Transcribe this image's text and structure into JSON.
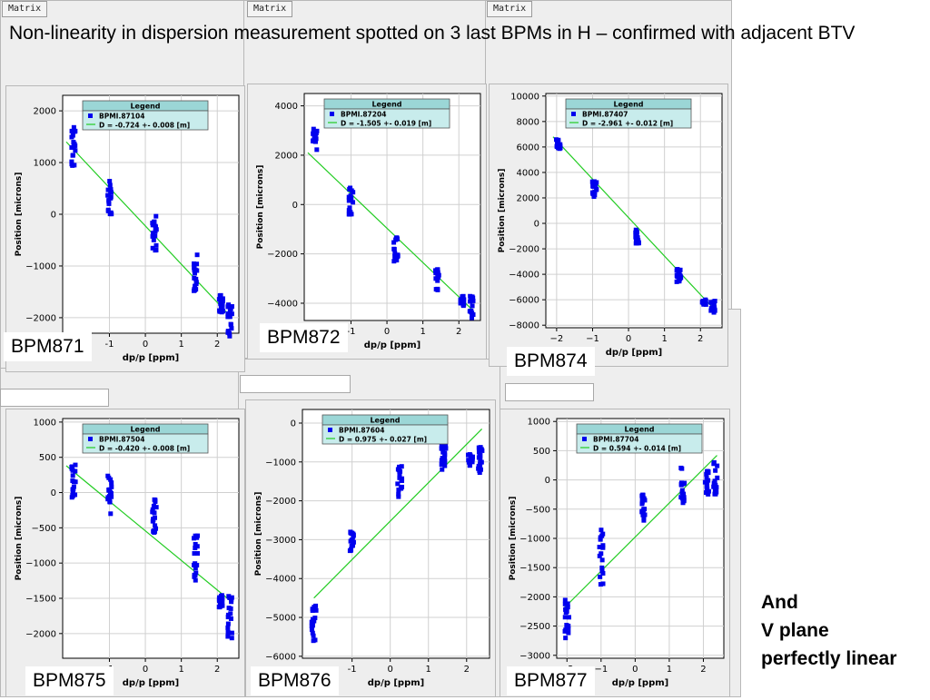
{
  "headline": "Non-linearity in dispersion measurement spotted on 3 last BPMs in H – confirmed with adjacent BTV",
  "tabs": [
    "Matrix",
    "Matrix",
    "Matrix"
  ],
  "note_lines": [
    "And",
    "V plane",
    "perfectly linear"
  ],
  "colors": {
    "marker": "#0000ee",
    "fit": "#22cc22",
    "legend_header": "#9bd6d6",
    "legend_body": "#c8ecec",
    "panel_bg": "#eeeeee"
  },
  "chart_data": [
    {
      "type": "scatter",
      "label": "BPM871",
      "xlabel": "dp/p [ppm]",
      "ylabel": "Position [microns]",
      "xlim": [
        -2.3,
        2.6
      ],
      "ylim": [
        -2300,
        2300
      ],
      "xticks": [
        -1,
        0,
        1,
        2
      ],
      "xtick_labels": [
        "-1",
        "0",
        "1",
        "2"
      ],
      "yticks": [
        2000,
        1000,
        0,
        -1000,
        -2000
      ],
      "ytick_labels": [
        "2000",
        "1000",
        "0",
        "−1000",
        "−2000"
      ],
      "legend": {
        "title": "Legend",
        "series": "BPMI.87104",
        "fit": "D = -0.724 +- 0.008 [m]"
      },
      "clusters": [
        {
          "x": -2.0,
          "y_min": 900,
          "y_max": 1700
        },
        {
          "x": -1.0,
          "y_min": 0,
          "y_max": 700
        },
        {
          "x": 0.25,
          "y_min": -700,
          "y_max": 0
        },
        {
          "x": 1.4,
          "y_min": -1500,
          "y_max": -750
        },
        {
          "x": 2.1,
          "y_min": -1900,
          "y_max": -1500
        },
        {
          "x": 2.35,
          "y_min": -2400,
          "y_max": -1700
        }
      ],
      "fit": {
        "x": [
          -2.2,
          2.4
        ],
        "y": [
          1400,
          -2000
        ]
      }
    },
    {
      "type": "scatter",
      "label": "BPM872",
      "xlabel": "dp/p [ppm]",
      "ylabel": "Position [microns]",
      "xlim": [
        -2.3,
        2.6
      ],
      "ylim": [
        -4700,
        4500
      ],
      "xticks": [
        -1,
        0,
        1,
        2
      ],
      "xtick_labels": [
        "-1",
        "0",
        "1",
        "2"
      ],
      "yticks": [
        4000,
        2000,
        0,
        -2000,
        -4000
      ],
      "ytick_labels": [
        "4000",
        "2000",
        "0",
        "−2000",
        "−4000"
      ],
      "legend": {
        "title": "Legend",
        "series": "BPMI.87204",
        "fit": "D = -1.505 +- 0.019 [m]"
      },
      "clusters": [
        {
          "x": -2.0,
          "y_min": 2200,
          "y_max": 3200
        },
        {
          "x": -1.0,
          "y_min": -400,
          "y_max": 700
        },
        {
          "x": 0.25,
          "y_min": -2300,
          "y_max": -1300
        },
        {
          "x": 1.4,
          "y_min": -3500,
          "y_max": -2600
        },
        {
          "x": 2.1,
          "y_min": -4100,
          "y_max": -3700
        },
        {
          "x": 2.35,
          "y_min": -4600,
          "y_max": -3700
        }
      ],
      "fit": {
        "x": [
          -2.2,
          2.4
        ],
        "y": [
          2100,
          -4300
        ]
      }
    },
    {
      "type": "scatter",
      "label": "BPM874",
      "xlabel": "dp/p [ppm]",
      "ylabel": "Position [microns]",
      "xlim": [
        -2.3,
        2.6
      ],
      "ylim": [
        -8200,
        10200
      ],
      "xticks": [
        -2,
        -1,
        0,
        1,
        2
      ],
      "xtick_labels": [
        "−2",
        "−1",
        "0",
        "1",
        "2"
      ],
      "yticks": [
        10000,
        8000,
        6000,
        4000,
        2000,
        0,
        -2000,
        -4000,
        -6000,
        -8000
      ],
      "ytick_labels": [
        "10000",
        "8000",
        "6000",
        "4000",
        "2000",
        "0",
        "−2000",
        "−4000",
        "−6000",
        "−8000"
      ],
      "legend": {
        "title": "Legend",
        "series": "BPMI.87407",
        "fit": "D = -2.961 +- 0.012 [m]"
      },
      "clusters": [
        {
          "x": -1.95,
          "y_min": 5800,
          "y_max": 6700
        },
        {
          "x": -0.95,
          "y_min": 2100,
          "y_max": 3300
        },
        {
          "x": 0.25,
          "y_min": -1600,
          "y_max": -500
        },
        {
          "x": 1.4,
          "y_min": -4600,
          "y_max": -3600
        },
        {
          "x": 2.1,
          "y_min": -6400,
          "y_max": -6000
        },
        {
          "x": 2.35,
          "y_min": -7000,
          "y_max": -6100
        }
      ],
      "fit": {
        "x": [
          -2.1,
          2.4
        ],
        "y": [
          6800,
          -6800
        ]
      }
    },
    {
      "type": "scatter",
      "label": "BPM875",
      "xlabel": "dp/p [ppm]",
      "ylabel": "Position [microns]",
      "xlim": [
        -2.3,
        2.6
      ],
      "ylim": [
        -2350,
        1050
      ],
      "xticks": [
        -1,
        0,
        1,
        2
      ],
      "xtick_labels": [
        "-1",
        "0",
        "1",
        "2"
      ],
      "yticks": [
        1000,
        500,
        0,
        -500,
        -1000,
        -1500,
        -2000
      ],
      "ytick_labels": [
        "1000",
        "500",
        "0",
        "−500",
        "−1000",
        "−1500",
        "−2000"
      ],
      "legend": {
        "title": "Legend",
        "series": "BPMI.87504",
        "fit": "D = -0.420 +- 0.008 [m]"
      },
      "clusters": [
        {
          "x": -2.0,
          "y_min": -100,
          "y_max": 400
        },
        {
          "x": -1.0,
          "y_min": -300,
          "y_max": 300
        },
        {
          "x": 0.25,
          "y_min": -650,
          "y_max": -100
        },
        {
          "x": 1.4,
          "y_min": -1300,
          "y_max": -600
        },
        {
          "x": 2.1,
          "y_min": -1650,
          "y_max": -1450
        },
        {
          "x": 2.35,
          "y_min": -2100,
          "y_max": -1450
        }
      ],
      "fit": {
        "x": [
          -2.2,
          2.4
        ],
        "y": [
          380,
          -1550
        ]
      }
    },
    {
      "type": "scatter",
      "label": "BPM876",
      "xlabel": "dp/p [ppm]",
      "ylabel": "Position [microns]",
      "xlim": [
        -2.3,
        2.6
      ],
      "ylim": [
        -6050,
        350
      ],
      "xticks": [
        -1,
        0,
        1,
        2
      ],
      "xtick_labels": [
        "-1",
        "0",
        "1",
        "2"
      ],
      "yticks": [
        0,
        -1000,
        -2000,
        -3000,
        -4000,
        -5000,
        -6000
      ],
      "ytick_labels": [
        "0",
        "−1000",
        "−2000",
        "−3000",
        "−4000",
        "−5000",
        "−6000"
      ],
      "legend": {
        "title": "Legend",
        "series": "BPMI.87604",
        "fit": "D = 0.975 +- 0.027 [m]"
      },
      "clusters": [
        {
          "x": -2.0,
          "y_min": -5600,
          "y_max": -4700
        },
        {
          "x": -1.0,
          "y_min": -3300,
          "y_max": -2800
        },
        {
          "x": 0.25,
          "y_min": -1900,
          "y_max": -1100
        },
        {
          "x": 1.4,
          "y_min": -1200,
          "y_max": -400
        },
        {
          "x": 2.1,
          "y_min": -1100,
          "y_max": -800
        },
        {
          "x": 2.35,
          "y_min": -1300,
          "y_max": -600
        }
      ],
      "fit": {
        "x": [
          -2.0,
          2.4
        ],
        "y": [
          -4500,
          -150
        ]
      }
    },
    {
      "type": "scatter",
      "label": "BPM877",
      "xlabel": "dp/p [ppm]",
      "ylabel": "Position [microns]",
      "xlim": [
        -2.3,
        2.6
      ],
      "ylim": [
        -3050,
        1050
      ],
      "xticks": [
        -2,
        -1,
        0,
        1,
        2
      ],
      "xtick_labels": [
        "−2",
        "−1",
        "0",
        "1",
        "2"
      ],
      "yticks": [
        1000,
        500,
        0,
        -500,
        -1000,
        -1500,
        -2000,
        -2500,
        -3000
      ],
      "ytick_labels": [
        "1000",
        "500",
        "0",
        "−500",
        "−1000",
        "−1500",
        "−2000",
        "−2500",
        "−3000"
      ],
      "legend": {
        "title": "Legend",
        "series": "BPMI.87704",
        "fit": "D = 0.594 +- 0.014 [m]"
      },
      "clusters": [
        {
          "x": -2.0,
          "y_min": -2750,
          "y_max": -2050
        },
        {
          "x": -1.0,
          "y_min": -1800,
          "y_max": -850
        },
        {
          "x": 0.25,
          "y_min": -750,
          "y_max": -200
        },
        {
          "x": 1.4,
          "y_min": -450,
          "y_max": 250
        },
        {
          "x": 2.1,
          "y_min": -250,
          "y_max": 200
        },
        {
          "x": 2.35,
          "y_min": -250,
          "y_max": 420
        }
      ],
      "fit": {
        "x": [
          -2.1,
          2.4
        ],
        "y": [
          -2200,
          420
        ]
      }
    }
  ]
}
